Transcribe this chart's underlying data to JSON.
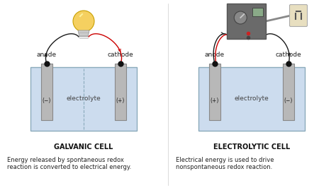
{
  "bg_color": "#ffffff",
  "left_title": "GALVANIC CELL",
  "right_title": "ELECTROLYTIC CELL",
  "left_caption_l1": "Energy released by spontaneous redox",
  "left_caption_l2": "reaction is converted to electrical energy.",
  "right_caption_l1": "Electrical energy is used to drive",
  "right_caption_l2": "nonspontaneous redox reaction.",
  "electrolyte_color": "#ccdcee",
  "electrolyte_outline": "#8aaabb",
  "electrode_color": "#b8b8b8",
  "electrode_outline": "#888888",
  "tank_outline": "#8aaabb",
  "wire_black": "#1a1a1a",
  "wire_red": "#cc0000",
  "node_color": "#111111",
  "anode_label": "anode",
  "cathode_label": "cathode",
  "electrolyte_label": "electrolyte",
  "title_fontsize": 7.0,
  "caption_fontsize": 6.0,
  "label_fontsize": 6.5,
  "sign_fontsize": 5.5
}
